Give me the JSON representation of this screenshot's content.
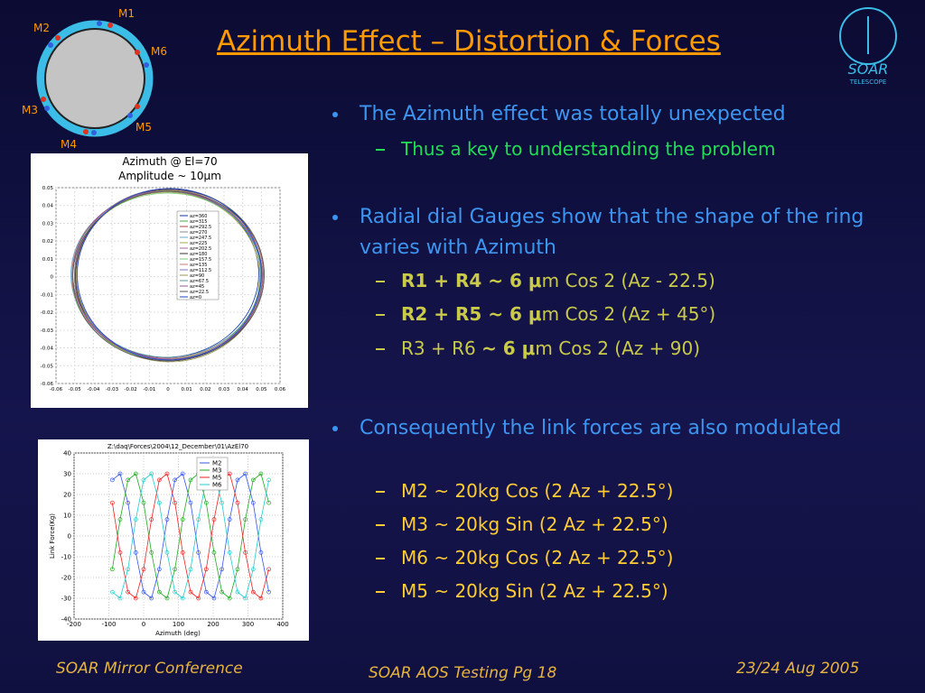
{
  "title": "Azimuth Effect – Distortion & Forces",
  "logo": {
    "name": "SOAR",
    "tagline": "TELESCOPE"
  },
  "ring_diagram": {
    "labels": [
      "M1",
      "M2",
      "M6",
      "M3",
      "M5",
      "M4"
    ]
  },
  "bullets": [
    {
      "text": "The Azimuth effect was totally unexpected",
      "sub": [
        [
          {
            "t": "Thus a key to understanding the problem",
            "b": false
          }
        ]
      ]
    },
    {
      "text": "Radial dial Gauges show that the shape of the ring varies with Azimuth",
      "sub": [
        [
          {
            "t": "R1 + R4 ~ 6 μ",
            "b": true
          },
          {
            "t": "m Cos 2 (Az - 22.5)",
            "b": false
          }
        ],
        [
          {
            "t": "R2 + R5 ~ 6 μ",
            "b": true
          },
          {
            "t": "m Cos 2 (Az + 45°)",
            "b": false
          }
        ],
        [
          {
            "t": "R3 + R6 ",
            "b": false
          },
          {
            "t": "~ 6 μ",
            "b": true
          },
          {
            "t": "m Cos 2 (Az + 90)",
            "b": false
          }
        ]
      ]
    },
    {
      "text": "Consequently the link forces are also modulated",
      "sub": [
        [
          {
            "t": "M2 ~ 20kg Cos (2 Az + 22.5°)",
            "b": false
          }
        ],
        [
          {
            "t": "M3 ~ 20kg Sin  (2 Az + 22.5°)",
            "b": false
          }
        ],
        [
          {
            "t": "M6 ~ 20kg Cos (2 Az + 22.5°)",
            "b": false
          }
        ],
        [
          {
            "t": "M5 ~ 20kg Sin  (2 Az + 22.5°)",
            "b": false
          }
        ]
      ]
    }
  ],
  "ring_chart": {
    "type": "line",
    "title": "Azimuth @ El=70",
    "subtitle": "Amplitude ~ 10μm",
    "xlim": [
      -0.06,
      0.06
    ],
    "ylim": [
      -0.06,
      0.05
    ],
    "xticks": [
      -0.06,
      -0.05,
      -0.04,
      -0.03,
      -0.02,
      -0.01,
      0,
      0.01,
      0.02,
      0.03,
      0.04,
      0.05,
      0.06
    ],
    "yticks": [
      0.05,
      0.04,
      0.03,
      0.02,
      0.01,
      0,
      -0.01,
      -0.02,
      -0.03,
      -0.04,
      -0.05,
      -0.06
    ],
    "legend_entries": [
      "az=360",
      "az=315",
      "az=292.5",
      "az=270",
      "az=247.5",
      "az=225",
      "az=202.5",
      "az=180",
      "az=157.5",
      "az=135",
      "az=112.5",
      "az=90",
      "az=67.5",
      "az=45",
      "az=22.5",
      "az=0"
    ],
    "grid": true
  },
  "force_chart": {
    "type": "line",
    "title": "Z:\\daq\\Forces\\2004\\12_December\\01\\AzEl70",
    "xlabel": "Azimuth (deg)",
    "ylabel": "Link Force(Kg)",
    "x": [
      -90,
      -67.5,
      -45,
      -22.5,
      0,
      22.5,
      45,
      67.5,
      90,
      112.5,
      135,
      157.5,
      180,
      202.5,
      225,
      247.5,
      270,
      292.5,
      315,
      337.5,
      360
    ],
    "series": [
      {
        "name": "M2",
        "color": "#3355ee",
        "values": [
          27,
          30,
          16,
          -8,
          -27,
          -30,
          -16,
          8,
          27,
          30,
          16,
          -8,
          -27,
          -30,
          -16,
          8,
          27,
          30,
          16,
          -8,
          -27
        ]
      },
      {
        "name": "M3",
        "color": "#22aa22",
        "values": [
          -16,
          8,
          27,
          30,
          16,
          -8,
          -27,
          -30,
          -16,
          8,
          27,
          30,
          16,
          -8,
          -27,
          -30,
          -16,
          8,
          27,
          30,
          16
        ]
      },
      {
        "name": "M5",
        "color": "#ee2222",
        "values": [
          16,
          -8,
          -27,
          -30,
          -16,
          8,
          27,
          30,
          16,
          -8,
          -27,
          -30,
          -16,
          8,
          27,
          30,
          16,
          -8,
          -27,
          -30,
          -16
        ]
      },
      {
        "name": "M6",
        "color": "#22cccc",
        "values": [
          -27,
          -30,
          -16,
          8,
          27,
          30,
          16,
          -8,
          -27,
          -30,
          -16,
          8,
          27,
          30,
          16,
          -8,
          -27,
          -30,
          -16,
          8,
          27
        ]
      }
    ],
    "xlim": [
      -200,
      400
    ],
    "ylim": [
      -40,
      40
    ],
    "xticks": [
      -200,
      -100,
      0,
      100,
      200,
      300,
      400
    ],
    "yticks": [
      -40,
      -30,
      -20,
      -10,
      0,
      10,
      20,
      30,
      40
    ],
    "grid": true
  },
  "footer": {
    "left": "SOAR Mirror Conference",
    "center": "SOAR AOS Testing Pg 18",
    "right": "23/24 Aug 2005"
  }
}
